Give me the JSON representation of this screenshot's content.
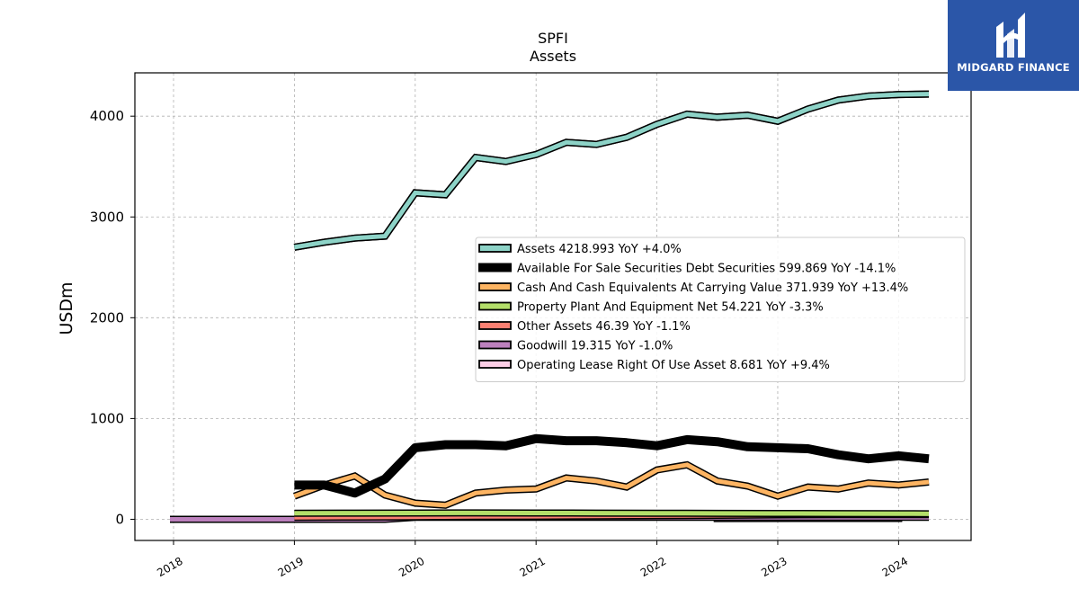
{
  "chart_data": {
    "type": "line",
    "title": "SPFI",
    "subtitle": "Assets",
    "ylabel": "USDm",
    "xlabel": "",
    "xlim": [
      2017.68,
      2024.6
    ],
    "ylim": [
      -210,
      4430
    ],
    "x_ticks": [
      2018,
      2019,
      2020,
      2021,
      2022,
      2023,
      2024
    ],
    "x_tick_labels": [
      "2018",
      "2019",
      "2020",
      "2021",
      "2022",
      "2023",
      "2024"
    ],
    "y_ticks": [
      0,
      1000,
      2000,
      3000,
      4000
    ],
    "y_tick_labels": [
      "0",
      "1000",
      "2000",
      "3000",
      "4000"
    ],
    "grid": true,
    "legend_position": "center-right",
    "series": [
      {
        "name": "Assets",
        "legend": "Assets  4218.993 YoY +4.0%",
        "color": "#8dd3c7",
        "kind": "line",
        "x": [
          2019.0,
          2019.25,
          2019.5,
          2019.75,
          2020.0,
          2020.25,
          2020.5,
          2020.75,
          2021.0,
          2021.25,
          2021.5,
          2021.75,
          2022.0,
          2022.25,
          2022.5,
          2022.75,
          2023.0,
          2023.25,
          2023.5,
          2023.75,
          2024.0,
          2024.25
        ],
        "values": [
          2700,
          2750,
          2790,
          2810,
          3240,
          3220,
          3590,
          3550,
          3620,
          3740,
          3720,
          3790,
          3920,
          4020,
          3990,
          4010,
          3950,
          4070,
          4160,
          4200,
          4215,
          4219
        ]
      },
      {
        "name": "Available For Sale Securities Debt Securities",
        "legend": "Available For Sale Securities Debt Securities  599.869 YoY -14.1%",
        "color": "#000000",
        "kind": "line",
        "x": [
          2019.0,
          2019.25,
          2019.5,
          2019.75,
          2020.0,
          2020.25,
          2020.5,
          2020.75,
          2021.0,
          2021.25,
          2021.5,
          2021.75,
          2022.0,
          2022.25,
          2022.5,
          2022.75,
          2023.0,
          2023.25,
          2023.5,
          2023.75,
          2024.0,
          2024.25
        ],
        "values": [
          340,
          340,
          260,
          400,
          710,
          740,
          740,
          730,
          800,
          780,
          780,
          760,
          730,
          790,
          770,
          720,
          710,
          700,
          640,
          600,
          630,
          600
        ]
      },
      {
        "name": "Cash And Cash Equivalents At Carrying Value",
        "legend": "Cash And Cash Equivalents At Carrying Value  371.939 YoY +13.4%",
        "color": "#fdb462",
        "kind": "line",
        "x": [
          2019.0,
          2019.25,
          2019.5,
          2019.75,
          2020.0,
          2020.25,
          2020.5,
          2020.75,
          2021.0,
          2021.25,
          2021.5,
          2021.75,
          2022.0,
          2022.25,
          2022.5,
          2022.75,
          2023.0,
          2023.25,
          2023.5,
          2023.75,
          2024.0,
          2024.25
        ],
        "values": [
          230,
          340,
          430,
          240,
          160,
          140,
          260,
          290,
          300,
          410,
          380,
          320,
          490,
          540,
          380,
          330,
          230,
          320,
          300,
          360,
          340,
          370
        ]
      },
      {
        "name": "Property Plant And Equipment Net",
        "legend": "Property Plant And Equipment Net  54.221 YoY -3.3%",
        "color": "#b3de69",
        "kind": "line",
        "x": [
          2019.0,
          2019.5,
          2020.0,
          2020.5,
          2021.0,
          2021.5,
          2022.0,
          2022.5,
          2023.0,
          2023.5,
          2024.0,
          2024.25
        ],
        "values": [
          60,
          61,
          62,
          63,
          62,
          61,
          60,
          59,
          58,
          57,
          56,
          54
        ]
      },
      {
        "name": "Other Assets",
        "legend": "Other Assets  46.39 YoY -1.1%",
        "color": "#fb8072",
        "kind": "line",
        "x": [
          2019.0,
          2019.5,
          2020.0,
          2020.5,
          2021.0,
          2021.5,
          2022.0,
          2022.5,
          2023.0,
          2023.5,
          2024.0,
          2024.25
        ],
        "values": [
          20,
          22,
          25,
          28,
          30,
          33,
          36,
          40,
          44,
          46,
          47,
          46
        ]
      },
      {
        "name": "Goodwill",
        "legend": "Goodwill  19.315 YoY -1.0%",
        "color": "#bc80bd",
        "kind": "line",
        "x": [
          2017.97,
          2019.75,
          2020.0,
          2020.5,
          2021.0,
          2021.5,
          2022.0,
          2022.5,
          2023.0,
          2023.5,
          2024.0,
          2024.25
        ],
        "values": [
          0,
          0,
          19,
          19,
          19,
          19,
          19,
          19,
          19,
          19,
          19,
          19
        ]
      },
      {
        "name": "Operating Lease Right Of Use Asset",
        "legend": "Operating Lease Right Of Use Asset  8.681 YoY +9.4%",
        "color": "#fccde5",
        "kind": "line",
        "x": [
          2022.47,
          2024.03
        ],
        "values": [
          8,
          9
        ]
      }
    ]
  },
  "branding": {
    "logo_text": "MIDGARD FINANCE",
    "logo_color": "#2b56a8"
  }
}
